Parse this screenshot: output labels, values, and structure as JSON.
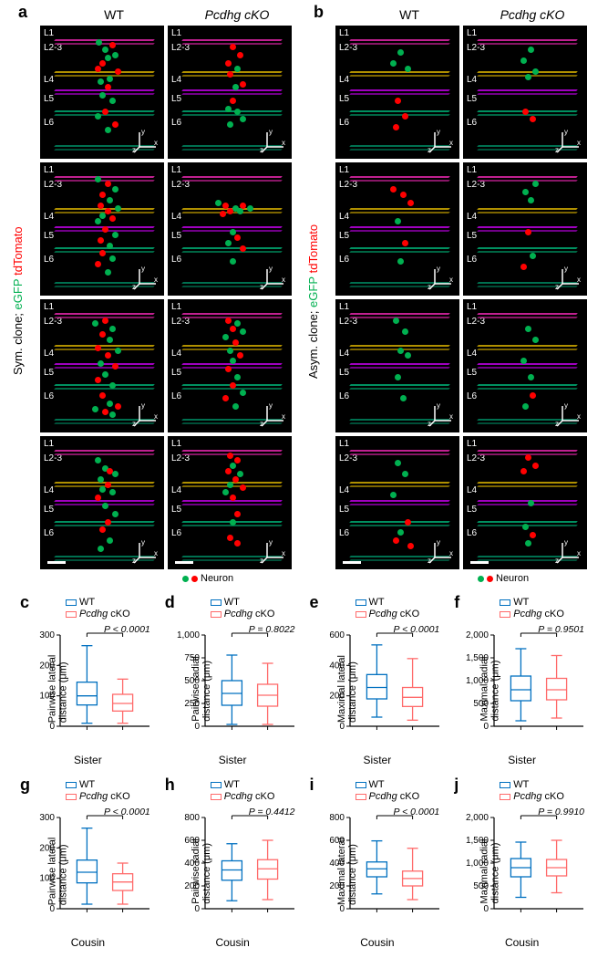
{
  "colors": {
    "egfp": "#00b050",
    "tdtomato": "#ff0000",
    "layer_top": "#c02090",
    "layer_l3l4": "#b09000",
    "layer_l4l5": "#a000c0",
    "layer_l5l6": "#009060",
    "layer_bottom": "#007050",
    "wt_box": "#0070c0",
    "cko_box": "#ff6a6a",
    "axis": "#000000"
  },
  "panel_a": {
    "label": "a",
    "side_label_top": "Sym. clone;",
    "side_label_green": "eGFP",
    "side_label_red": "tdTomato",
    "columns": [
      "WT",
      "Pcdhg cKO"
    ],
    "layers": [
      "L1",
      "L2-3",
      "L4",
      "L5",
      "L6"
    ],
    "layer_positions": [
      3,
      14,
      38,
      52,
      70
    ],
    "line_positions": [
      10,
      34,
      48,
      64,
      90
    ],
    "neuron_legend": "Neuron",
    "micro": [
      {
        "wt": [
          [
            "g",
            45,
            10
          ],
          [
            "g",
            50,
            16
          ],
          [
            "r",
            56,
            12
          ],
          [
            "g",
            52,
            22
          ],
          [
            "r",
            48,
            26
          ],
          [
            "g",
            58,
            20
          ],
          [
            "r",
            44,
            30
          ],
          [
            "r",
            60,
            32
          ],
          [
            "g",
            54,
            38
          ],
          [
            "g",
            46,
            40
          ],
          [
            "r",
            52,
            44
          ],
          [
            "g",
            48,
            50
          ],
          [
            "g",
            56,
            54
          ],
          [
            "r",
            50,
            62
          ],
          [
            "g",
            44,
            66
          ],
          [
            "r",
            58,
            72
          ],
          [
            "g",
            52,
            76
          ]
        ],
        "cko": [
          [
            "r",
            50,
            14
          ],
          [
            "r",
            56,
            20
          ],
          [
            "r",
            46,
            26
          ],
          [
            "g",
            54,
            30
          ],
          [
            "r",
            48,
            34
          ],
          [
            "r",
            58,
            42
          ],
          [
            "g",
            52,
            44
          ],
          [
            "r",
            50,
            54
          ],
          [
            "g",
            46,
            60
          ],
          [
            "g",
            54,
            62
          ],
          [
            "g",
            58,
            68
          ],
          [
            "g",
            48,
            72
          ]
        ]
      },
      {
        "wt": [
          [
            "g",
            44,
            10
          ],
          [
            "r",
            52,
            14
          ],
          [
            "g",
            58,
            18
          ],
          [
            "r",
            48,
            22
          ],
          [
            "g",
            54,
            26
          ],
          [
            "r",
            46,
            30
          ],
          [
            "g",
            60,
            32
          ],
          [
            "r",
            52,
            34
          ],
          [
            "g",
            48,
            38
          ],
          [
            "r",
            56,
            40
          ],
          [
            "g",
            44,
            42
          ],
          [
            "r",
            50,
            48
          ],
          [
            "g",
            58,
            52
          ],
          [
            "r",
            46,
            56
          ],
          [
            "g",
            54,
            60
          ],
          [
            "r",
            48,
            66
          ],
          [
            "g",
            56,
            70
          ],
          [
            "r",
            44,
            74
          ],
          [
            "g",
            52,
            80
          ]
        ],
        "cko": [
          [
            "g",
            38,
            28
          ],
          [
            "r",
            44,
            30
          ],
          [
            "g",
            52,
            32
          ],
          [
            "r",
            58,
            30
          ],
          [
            "g",
            64,
            32
          ],
          [
            "r",
            48,
            34
          ],
          [
            "g",
            56,
            34
          ],
          [
            "r",
            42,
            36
          ],
          [
            "g",
            50,
            50
          ],
          [
            "r",
            54,
            54
          ],
          [
            "g",
            46,
            58
          ],
          [
            "r",
            58,
            62
          ],
          [
            "g",
            50,
            72
          ]
        ]
      },
      {
        "wt": [
          [
            "g",
            42,
            16
          ],
          [
            "r",
            50,
            14
          ],
          [
            "g",
            56,
            20
          ],
          [
            "r",
            48,
            24
          ],
          [
            "g",
            54,
            28
          ],
          [
            "r",
            44,
            34
          ],
          [
            "g",
            60,
            36
          ],
          [
            "r",
            52,
            40
          ],
          [
            "g",
            46,
            46
          ],
          [
            "r",
            58,
            48
          ],
          [
            "g",
            50,
            54
          ],
          [
            "r",
            44,
            58
          ],
          [
            "g",
            56,
            62
          ],
          [
            "r",
            48,
            70
          ],
          [
            "g",
            54,
            76
          ],
          [
            "r",
            60,
            78
          ],
          [
            "g",
            42,
            80
          ],
          [
            "r",
            50,
            82
          ],
          [
            "g",
            56,
            84
          ]
        ],
        "cko": [
          [
            "r",
            46,
            14
          ],
          [
            "g",
            54,
            16
          ],
          [
            "r",
            50,
            20
          ],
          [
            "g",
            58,
            22
          ],
          [
            "g",
            44,
            26
          ],
          [
            "r",
            52,
            30
          ],
          [
            "g",
            48,
            36
          ],
          [
            "r",
            56,
            40
          ],
          [
            "g",
            50,
            44
          ],
          [
            "r",
            46,
            50
          ],
          [
            "g",
            54,
            56
          ],
          [
            "r",
            50,
            62
          ],
          [
            "g",
            58,
            68
          ],
          [
            "r",
            44,
            72
          ],
          [
            "g",
            52,
            78
          ]
        ]
      },
      {
        "wt": [
          [
            "g",
            44,
            16
          ],
          [
            "g",
            50,
            22
          ],
          [
            "r",
            54,
            24
          ],
          [
            "g",
            58,
            26
          ],
          [
            "g",
            46,
            30
          ],
          [
            "r",
            52,
            34
          ],
          [
            "g",
            48,
            38
          ],
          [
            "g",
            56,
            40
          ],
          [
            "r",
            44,
            44
          ],
          [
            "g",
            50,
            50
          ],
          [
            "g",
            58,
            56
          ],
          [
            "r",
            52,
            62
          ],
          [
            "r",
            48,
            68
          ],
          [
            "g",
            54,
            76
          ],
          [
            "g",
            46,
            82
          ]
        ],
        "cko": [
          [
            "r",
            48,
            12
          ],
          [
            "r",
            54,
            16
          ],
          [
            "g",
            50,
            20
          ],
          [
            "r",
            46,
            24
          ],
          [
            "g",
            56,
            26
          ],
          [
            "r",
            52,
            30
          ],
          [
            "g",
            48,
            34
          ],
          [
            "r",
            58,
            36
          ],
          [
            "g",
            44,
            40
          ],
          [
            "r",
            50,
            44
          ],
          [
            "r",
            54,
            56
          ],
          [
            "g",
            50,
            62
          ],
          [
            "r",
            48,
            74
          ],
          [
            "r",
            54,
            78
          ]
        ]
      }
    ]
  },
  "panel_b": {
    "label": "b",
    "side_label_top": "Asym. clone;",
    "side_label_green": "eGFP",
    "side_label_red": "tdTomato",
    "columns": [
      "WT",
      "Pcdhg cKO"
    ],
    "layers": [
      "L1",
      "L2-3",
      "L4",
      "L5",
      "L6"
    ],
    "layer_positions": [
      3,
      14,
      38,
      52,
      70
    ],
    "line_positions": [
      10,
      34,
      48,
      64,
      90
    ],
    "neuron_legend": "Neuron",
    "micro": [
      {
        "wt": [
          [
            "g",
            50,
            18
          ],
          [
            "g",
            44,
            26
          ],
          [
            "g",
            56,
            30
          ],
          [
            "r",
            48,
            54
          ],
          [
            "r",
            54,
            66
          ],
          [
            "r",
            46,
            74
          ]
        ],
        "cko": [
          [
            "g",
            52,
            16
          ],
          [
            "g",
            46,
            24
          ],
          [
            "g",
            56,
            32
          ],
          [
            "g",
            50,
            36
          ],
          [
            "r",
            48,
            62
          ],
          [
            "r",
            54,
            68
          ]
        ]
      },
      {
        "wt": [
          [
            "r",
            44,
            18
          ],
          [
            "r",
            52,
            22
          ],
          [
            "r",
            58,
            28
          ],
          [
            "g",
            48,
            42
          ],
          [
            "r",
            54,
            58
          ],
          [
            "g",
            50,
            72
          ]
        ],
        "cko": [
          [
            "g",
            56,
            14
          ],
          [
            "g",
            48,
            20
          ],
          [
            "g",
            52,
            26
          ],
          [
            "r",
            50,
            50
          ],
          [
            "g",
            54,
            68
          ],
          [
            "r",
            46,
            76
          ]
        ]
      },
      {
        "wt": [
          [
            "g",
            46,
            14
          ],
          [
            "g",
            54,
            22
          ],
          [
            "g",
            50,
            36
          ],
          [
            "g",
            56,
            40
          ],
          [
            "g",
            48,
            56
          ],
          [
            "g",
            52,
            72
          ]
        ],
        "cko": [
          [
            "g",
            50,
            20
          ],
          [
            "g",
            56,
            28
          ],
          [
            "g",
            46,
            44
          ],
          [
            "g",
            52,
            56
          ],
          [
            "r",
            54,
            70
          ],
          [
            "g",
            48,
            78
          ]
        ]
      },
      {
        "wt": [
          [
            "g",
            48,
            18
          ],
          [
            "g",
            54,
            26
          ],
          [
            "g",
            44,
            42
          ],
          [
            "r",
            56,
            62
          ],
          [
            "g",
            50,
            70
          ],
          [
            "r",
            46,
            76
          ],
          [
            "r",
            58,
            80
          ]
        ],
        "cko": [
          [
            "r",
            50,
            14
          ],
          [
            "r",
            56,
            20
          ],
          [
            "r",
            46,
            24
          ],
          [
            "g",
            52,
            48
          ],
          [
            "g",
            48,
            66
          ],
          [
            "r",
            54,
            72
          ],
          [
            "g",
            50,
            78
          ]
        ]
      }
    ]
  },
  "boxplots": {
    "row1_label": "Sister",
    "row2_label": "Cousin",
    "legend": {
      "wt": "WT",
      "cko_prefix": "Pcdhg",
      "cko_suffix": " cKO"
    },
    "panels": [
      {
        "id": "c",
        "ylabel": "Pairwise lateral\ndistance (μm)",
        "ymax": 300,
        "ytick": 100,
        "pval": "P < 0.0001",
        "wt": {
          "q1": 70,
          "med": 100,
          "q3": 145,
          "lo": 10,
          "hi": 265
        },
        "cko": {
          "q1": 50,
          "med": 75,
          "q3": 105,
          "lo": 10,
          "hi": 155
        },
        "xlabel": "Sister"
      },
      {
        "id": "d",
        "ylabel": "Pairwise radial\ndistance (μm)",
        "ymax": 1000,
        "ytick": 250,
        "pval": "P = 0.8022",
        "wt": {
          "q1": 230,
          "med": 360,
          "q3": 500,
          "lo": 20,
          "hi": 780
        },
        "cko": {
          "q1": 220,
          "med": 340,
          "q3": 460,
          "lo": 20,
          "hi": 690
        },
        "xlabel": "Sister"
      },
      {
        "id": "e",
        "ylabel": "Maximal lateral\ndistance (μm)",
        "ymax": 600,
        "ytick": 200,
        "pval": "P < 0.0001",
        "wt": {
          "q1": 180,
          "med": 255,
          "q3": 340,
          "lo": 60,
          "hi": 535
        },
        "cko": {
          "q1": 130,
          "med": 190,
          "q3": 255,
          "lo": 40,
          "hi": 445
        },
        "xlabel": "Sister"
      },
      {
        "id": "f",
        "ylabel": "Maximal radial\ndistance (μm)",
        "ymax": 2000,
        "ytick": 500,
        "pval": "P = 0.9501",
        "wt": {
          "q1": 560,
          "med": 800,
          "q3": 1100,
          "lo": 120,
          "hi": 1700
        },
        "cko": {
          "q1": 580,
          "med": 800,
          "q3": 1050,
          "lo": 180,
          "hi": 1550
        },
        "xlabel": "Sister"
      },
      {
        "id": "g",
        "ylabel": "Pairwise lateral\ndistance (μm)",
        "ymax": 300,
        "ytick": 100,
        "pval": "P < 0.0001",
        "wt": {
          "q1": 85,
          "med": 120,
          "q3": 160,
          "lo": 15,
          "hi": 265
        },
        "cko": {
          "q1": 60,
          "med": 88,
          "q3": 115,
          "lo": 15,
          "hi": 150
        },
        "xlabel": "Cousin"
      },
      {
        "id": "h",
        "ylabel": "Pairwise radial\ndistance (μm)",
        "ymax": 800,
        "ytick": 200,
        "pval": "P = 0.4412",
        "wt": {
          "q1": 250,
          "med": 340,
          "q3": 420,
          "lo": 70,
          "hi": 570
        },
        "cko": {
          "q1": 260,
          "med": 350,
          "q3": 430,
          "lo": 80,
          "hi": 600
        },
        "xlabel": "Cousin"
      },
      {
        "id": "i",
        "ylabel": "Maximal lateral\ndistance (μm)",
        "ymax": 800,
        "ytick": 200,
        "pval": "P < 0.0001",
        "wt": {
          "q1": 280,
          "med": 350,
          "q3": 410,
          "lo": 130,
          "hi": 595
        },
        "cko": {
          "q1": 200,
          "med": 265,
          "q3": 330,
          "lo": 80,
          "hi": 530
        },
        "xlabel": "Cousin"
      },
      {
        "id": "j",
        "ylabel": "Maximal radial\ndistance (μm)",
        "ymax": 2000,
        "ytick": 500,
        "pval": "P = 0.9910",
        "wt": {
          "q1": 700,
          "med": 900,
          "q3": 1100,
          "lo": 250,
          "hi": 1460
        },
        "cko": {
          "q1": 720,
          "med": 900,
          "q3": 1080,
          "lo": 350,
          "hi": 1500
        },
        "xlabel": "Cousin"
      }
    ]
  }
}
